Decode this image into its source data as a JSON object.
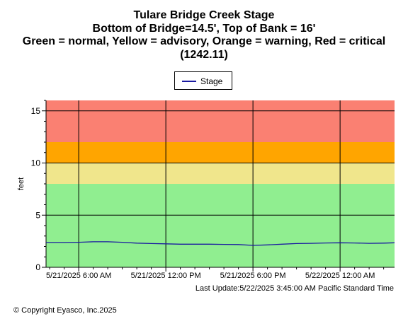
{
  "chart_data": {
    "type": "line",
    "title_lines": [
      "Tulare Bridge Creek Stage",
      "Bottom of Bridge=14.5', Top of Bank = 16'",
      "Green = normal, Yellow = advisory, Orange = warning, Red = critical",
      "(1242.11)"
    ],
    "ylabel": "feet",
    "ylim": [
      0,
      16
    ],
    "y_ticks": [
      0,
      5,
      10,
      15
    ],
    "xlim": [
      "5/21/2025 3:45 AM",
      "5/22/2025 3:45 AM"
    ],
    "x_tick_labels": [
      "5/21/2025 6:00 AM",
      "5/21/2025 12:00 PM",
      "5/21/2025 6:00 PM",
      "5/22/2025 12:00 AM"
    ],
    "x_ticks": [
      "5/21/2025 6:00 AM",
      "5/21/2025 12:00 PM",
      "5/21/2025 6:00 PM",
      "5/22/2025 12:00 AM"
    ],
    "grid": true,
    "legend_position": "top-center",
    "bands": [
      {
        "name": "normal",
        "from": 0,
        "to": 8,
        "color": "#90ee90"
      },
      {
        "name": "advisory",
        "from": 8,
        "to": 10,
        "color": "#f0e68c"
      },
      {
        "name": "warning",
        "from": 10,
        "to": 12,
        "color": "#ffa500"
      },
      {
        "name": "critical",
        "from": 12,
        "to": 16,
        "color": "#fa8072"
      }
    ],
    "series": [
      {
        "name": "Stage",
        "color": "#1a1aa0",
        "x": [
          "5/21/2025 3:45 AM",
          "5/21/2025 5:00 AM",
          "5/21/2025 6:00 AM",
          "5/21/2025 7:00 AM",
          "5/21/2025 8:00 AM",
          "5/21/2025 9:00 AM",
          "5/21/2025 10:00 AM",
          "5/21/2025 11:00 AM",
          "5/21/2025 12:00 PM",
          "5/21/2025 1:00 PM",
          "5/21/2025 2:00 PM",
          "5/21/2025 3:00 PM",
          "5/21/2025 4:00 PM",
          "5/21/2025 5:00 PM",
          "5/21/2025 6:00 PM",
          "5/21/2025 7:00 PM",
          "5/21/2025 8:00 PM",
          "5/21/2025 9:00 PM",
          "5/21/2025 10:00 PM",
          "5/21/2025 11:00 PM",
          "5/22/2025 12:00 AM",
          "5/22/2025 1:00 AM",
          "5/22/2025 2:00 AM",
          "5/22/2025 3:00 AM",
          "5/22/2025 3:45 AM"
        ],
        "values": [
          2.38,
          2.38,
          2.4,
          2.45,
          2.45,
          2.4,
          2.32,
          2.28,
          2.25,
          2.22,
          2.22,
          2.22,
          2.2,
          2.18,
          2.1,
          2.15,
          2.22,
          2.28,
          2.3,
          2.33,
          2.35,
          2.33,
          2.3,
          2.32,
          2.35
        ]
      }
    ],
    "legend_label": "Stage"
  },
  "footer": {
    "last_update": "Last Update:5/22/2025 3:45:00 AM Pacific Standard Time",
    "copyright": "© Copyright Eyasco, Inc.2025"
  }
}
